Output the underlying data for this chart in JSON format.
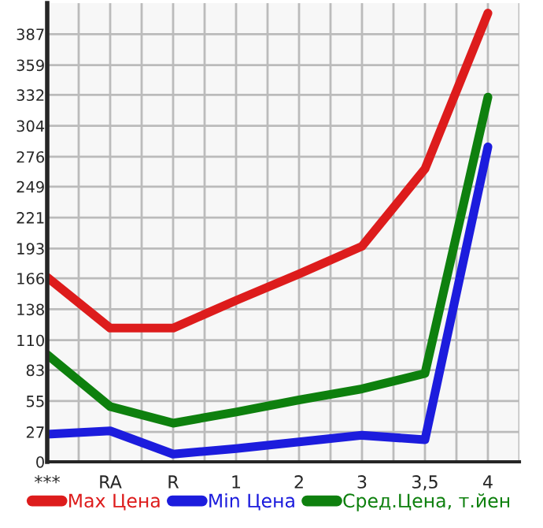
{
  "chart_data": {
    "type": "line",
    "categories": [
      "***",
      "RA",
      "R",
      "1",
      "2",
      "3",
      "3,5",
      "4"
    ],
    "series": [
      {
        "name": "Max Цена",
        "color": "#dd1c1c",
        "values": [
          167,
          121,
          121,
          146,
          170,
          195,
          265,
          406
        ]
      },
      {
        "name": "Min Цена",
        "color": "#1c1cdd",
        "values": [
          25,
          28,
          7,
          12,
          18,
          24,
          20,
          285
        ]
      },
      {
        "name": "Сред.Цена, т.йен",
        "color": "#0e800e",
        "values": [
          97,
          50,
          35,
          45,
          56,
          66,
          80,
          330
        ]
      }
    ],
    "ylim": [
      0,
      415
    ],
    "yticks": [
      0,
      27,
      55,
      83,
      110,
      138,
      166,
      193,
      221,
      249,
      276,
      304,
      332,
      359,
      387
    ],
    "grid": true,
    "legend": "bottom",
    "marker": "none",
    "line_style": "solid"
  }
}
